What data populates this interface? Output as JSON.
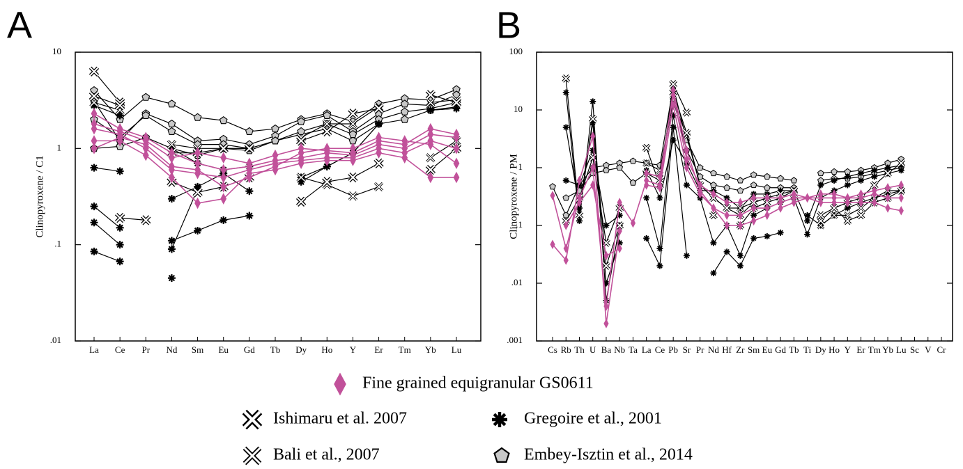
{
  "legend": [
    {
      "name": "Fine grained equigranular GS0611",
      "marker": "diamond",
      "color": "#c1519a"
    },
    {
      "name": "Ishimaru et al. 2007",
      "marker": "x-bold",
      "color": "#000000"
    },
    {
      "name": "Bali et al., 2007",
      "marker": "x",
      "color": "#000000"
    },
    {
      "name": "Gregoire et al., 2001",
      "marker": "asterisk",
      "color": "#000000"
    },
    {
      "name": "Embey-Isztin et al., 2014",
      "marker": "pentagon",
      "color": "#000000",
      "fill": "#c8c8c8"
    }
  ],
  "chart_data": [
    {
      "type": "line",
      "title": "A",
      "y_label": "Clinopyroxene / C1",
      "yscale": "log",
      "ylim": [
        0.01,
        10
      ],
      "yticks": [
        {
          "value": 0.01,
          "label": ".01"
        },
        {
          "value": 0.1,
          "label": ".1"
        },
        1,
        10
      ],
      "categories": [
        "La",
        "Ce",
        "Pr",
        "Nd",
        "Sm",
        "Eu",
        "Gd",
        "Tb",
        "Dy",
        "Ho",
        "Y",
        "Er",
        "Tm",
        "Yb",
        "Lu"
      ],
      "series": [
        {
          "samples": [
            [
              2.3,
              1.6,
              1.3,
              0.9,
              0.7,
              0.6,
              0.65,
              0.75,
              0.8,
              0.9,
              0.85,
              1.1,
              1.0,
              1.4,
              1.3
            ],
            [
              1.6,
              1.4,
              1.0,
              0.6,
              0.55,
              0.5,
              0.6,
              0.7,
              0.75,
              0.8,
              0.8,
              1.0,
              0.9,
              1.2,
              1.0
            ],
            [
              1.2,
              1.2,
              0.85,
              0.5,
              0.27,
              0.3,
              0.55,
              0.6,
              0.7,
              0.75,
              0.75,
              0.9,
              0.8,
              0.5,
              0.5
            ],
            [
              1.8,
              1.5,
              1.2,
              0.8,
              0.9,
              0.8,
              0.7,
              0.85,
              1.0,
              0.95,
              0.9,
              1.2,
              1.1,
              1.6,
              1.4
            ],
            [
              1.0,
              1.3,
              1.1,
              0.65,
              0.6,
              0.4,
              0.5,
              0.65,
              0.9,
              1.0,
              1.0,
              1.3,
              1.2,
              1.1,
              0.7
            ]
          ]
        },
        {
          "samples": [
            [
              6.3,
              3.0,
              null,
              0.45,
              0.35,
              0.4,
              0.5,
              null,
              0.28,
              0.45,
              0.5,
              0.7,
              null,
              0.6,
              1.0
            ],
            [
              3.5,
              2.8,
              null,
              0.9,
              0.9,
              1.0,
              1.0,
              null,
              1.2,
              1.5,
              2.3,
              2.6,
              null,
              3.6,
              3.0
            ],
            [
              null,
              0.19,
              0.18,
              null,
              null,
              null,
              null,
              null,
              null,
              null,
              null,
              null,
              null,
              null,
              null
            ]
          ]
        },
        {
          "samples": [
            [
              null,
              null,
              null,
              null,
              null,
              null,
              null,
              null,
              0.5,
              0.42,
              0.32,
              0.4,
              null,
              0.8,
              1.2
            ],
            [
              3.0,
              2.5,
              null,
              1.1,
              1.0,
              1.0,
              1.0,
              null,
              1.3,
              1.8,
              1.8,
              2.7,
              null,
              3.0,
              3.2
            ]
          ]
        },
        {
          "samples": [
            [
              0.085,
              0.067,
              null,
              0.11,
              0.14,
              0.18,
              0.2,
              null,
              null,
              null,
              null,
              null,
              null,
              null,
              null
            ],
            [
              0.63,
              0.58,
              null,
              0.3,
              0.4,
              0.55,
              0.36,
              null,
              0.45,
              0.65,
              0.9,
              1.8,
              null,
              2.5,
              2.6
            ],
            [
              0.25,
              0.15,
              null,
              0.09,
              0.38,
              null,
              null,
              null,
              null,
              null,
              null,
              null,
              null,
              null,
              null
            ],
            [
              2.8,
              2.2,
              null,
              1.0,
              0.7,
              0.6,
              0.65,
              null,
              0.5,
              0.65,
              0.9,
              1.8,
              null,
              2.5,
              2.6
            ],
            [
              0.17,
              0.1,
              null,
              0.045,
              null,
              null,
              null,
              null,
              null,
              null,
              null,
              null,
              null,
              null,
              null
            ]
          ]
        },
        {
          "samples": [
            [
              4.0,
              2.0,
              3.4,
              2.9,
              2.1,
              1.95,
              1.5,
              1.6,
              2.0,
              2.3,
              1.9,
              2.9,
              3.3,
              3.2,
              4.1
            ],
            [
              3.1,
              1.2,
              2.3,
              1.8,
              1.2,
              1.25,
              1.1,
              1.35,
              1.9,
              2.2,
              1.5,
              2.3,
              2.9,
              2.8,
              3.6
            ],
            [
              1.0,
              1.05,
              1.3,
              1.0,
              0.85,
              1.0,
              0.95,
              1.2,
              1.4,
              1.6,
              1.2,
              1.8,
              2.0,
              2.5,
              2.7
            ],
            [
              2.0,
              1.3,
              2.2,
              1.5,
              1.1,
              1.1,
              1.0,
              1.2,
              1.5,
              1.8,
              1.4,
              2.0,
              2.4,
              2.6,
              3.0
            ]
          ]
        }
      ]
    },
    {
      "type": "line",
      "title": "B",
      "y_label": "Clinopyroxene / PM",
      "yscale": "log",
      "ylim": [
        0.001,
        100
      ],
      "yticks": [
        {
          "value": 0.001,
          "label": ".001"
        },
        {
          "value": 0.01,
          "label": ".01"
        },
        {
          "value": 0.1,
          "label": ".1"
        },
        1,
        10,
        100
      ],
      "categories": [
        "Cs",
        "Rb",
        "Th",
        "U",
        "Ba",
        "Nb",
        "Ta",
        "La",
        "Ce",
        "Pb",
        "Sr",
        "Pr",
        "Nd",
        "Hf",
        "Zr",
        "Sm",
        "Eu",
        "Gd",
        "Tb",
        "Ti",
        "Dy",
        "Ho",
        "Y",
        "Er",
        "Tm",
        "Yb",
        "Lu",
        "Sc",
        "V",
        "Cr"
      ],
      "series": [
        {
          "samples": [
            [
              0.33,
              0.04,
              0.3,
              1.0,
              0.004,
              0.25,
              0.11,
              0.6,
              0.5,
              22,
              2.0,
              0.4,
              0.2,
              0.15,
              0.15,
              0.2,
              0.2,
              0.25,
              0.3,
              0.3,
              0.3,
              0.3,
              0.3,
              0.3,
              0.35,
              0.3,
              0.3,
              null,
              null,
              null
            ],
            [
              0.047,
              0.025,
              0.6,
              3.5,
              0.002,
              0.08,
              null,
              0.8,
              0.7,
              18,
              1.4,
              0.5,
              0.35,
              0.25,
              0.25,
              0.3,
              0.3,
              0.3,
              0.35,
              0.3,
              0.35,
              0.35,
              0.3,
              0.35,
              0.4,
              0.45,
              0.5,
              null,
              null,
              null
            ],
            [
              null,
              0.1,
              0.25,
              0.5,
              0.03,
              0.04,
              null,
              0.5,
              0.45,
              12,
              1.0,
              0.35,
              0.2,
              0.1,
              0.1,
              0.12,
              0.15,
              0.2,
              0.25,
              0.3,
              0.25,
              0.25,
              0.25,
              0.25,
              0.25,
              0.2,
              0.18,
              null,
              null,
              null
            ]
          ]
        },
        {
          "samples": [
            [
              null,
              35,
              0.15,
              7,
              0.02,
              0.1,
              null,
              2.2,
              0.5,
              28,
              9,
              null,
              0.15,
              null,
              0.1,
              0.2,
              0.25,
              0.3,
              0.4,
              null,
              0.12,
              0.2,
              0.25,
              0.3,
              0.5,
              0.8,
              1.2,
              null,
              null,
              null
            ],
            [
              null,
              0.12,
              0.3,
              1.5,
              0.05,
              0.2,
              null,
              0.8,
              0.6,
              20,
              4,
              0.5,
              0.3,
              0.2,
              0.15,
              0.25,
              0.3,
              0.35,
              0.4,
              null,
              0.15,
              0.2,
              0.12,
              0.15,
              0.25,
              0.3,
              0.4,
              null,
              null,
              null
            ]
          ]
        },
        {
          "samples": [
            [
              null,
              null,
              null,
              null,
              null,
              null,
              null,
              1.2,
              0.9,
              15,
              3.5,
              0.5,
              0.3,
              0.2,
              0.2,
              0.25,
              0.3,
              0.3,
              0.35,
              null,
              0.1,
              0.15,
              0.15,
              0.2,
              0.3,
              0.4,
              0.4,
              null,
              null,
              null
            ]
          ]
        },
        {
          "samples": [
            [
              null,
              20,
              0.12,
              14,
              0.005,
              0.1,
              null,
              0.06,
              0.02,
              5,
              0.03,
              null,
              0.015,
              0.035,
              0.02,
              0.06,
              0.065,
              0.075,
              null,
              0.15,
              0.1,
              0.15,
              0.2,
              0.25,
              0.3,
              0.35,
              0.4,
              null,
              null,
              null
            ],
            [
              null,
              5,
              0.2,
              6,
              0.01,
              0.05,
              null,
              0.3,
              0.04,
              8,
              0.5,
              0.3,
              0.05,
              0.1,
              0.03,
              0.15,
              0.2,
              0.25,
              0.3,
              0.07,
              0.3,
              0.4,
              0.5,
              0.6,
              0.7,
              0.8,
              0.9,
              null,
              null,
              null
            ],
            [
              null,
              0.6,
              0.5,
              2,
              0.1,
              0.15,
              null,
              0.9,
              0.3,
              3,
              1.2,
              0.4,
              0.4,
              0.3,
              0.2,
              0.35,
              0.35,
              0.4,
              0.4,
              0.12,
              0.5,
              0.6,
              0.7,
              0.8,
              0.9,
              1.0,
              1.1,
              null,
              null,
              null
            ]
          ]
        },
        {
          "samples": [
            [
              0.47,
              0.15,
              0.5,
              1.0,
              1.1,
              1.2,
              1.3,
              1.2,
              1.1,
              25,
              3.0,
              1.0,
              0.8,
              0.7,
              0.6,
              0.75,
              0.7,
              0.65,
              0.6,
              null,
              0.8,
              0.85,
              0.85,
              0.9,
              1.0,
              1.2,
              1.4,
              null,
              null,
              null
            ],
            [
              null,
              0.3,
              0.4,
              0.8,
              0.9,
              1.0,
              0.55,
              0.8,
              0.7,
              15,
              2.0,
              0.7,
              0.5,
              0.45,
              0.4,
              0.5,
              0.45,
              0.45,
              0.45,
              null,
              0.6,
              0.65,
              0.65,
              0.7,
              0.8,
              0.9,
              1.0,
              null,
              null,
              null
            ]
          ]
        }
      ]
    }
  ]
}
